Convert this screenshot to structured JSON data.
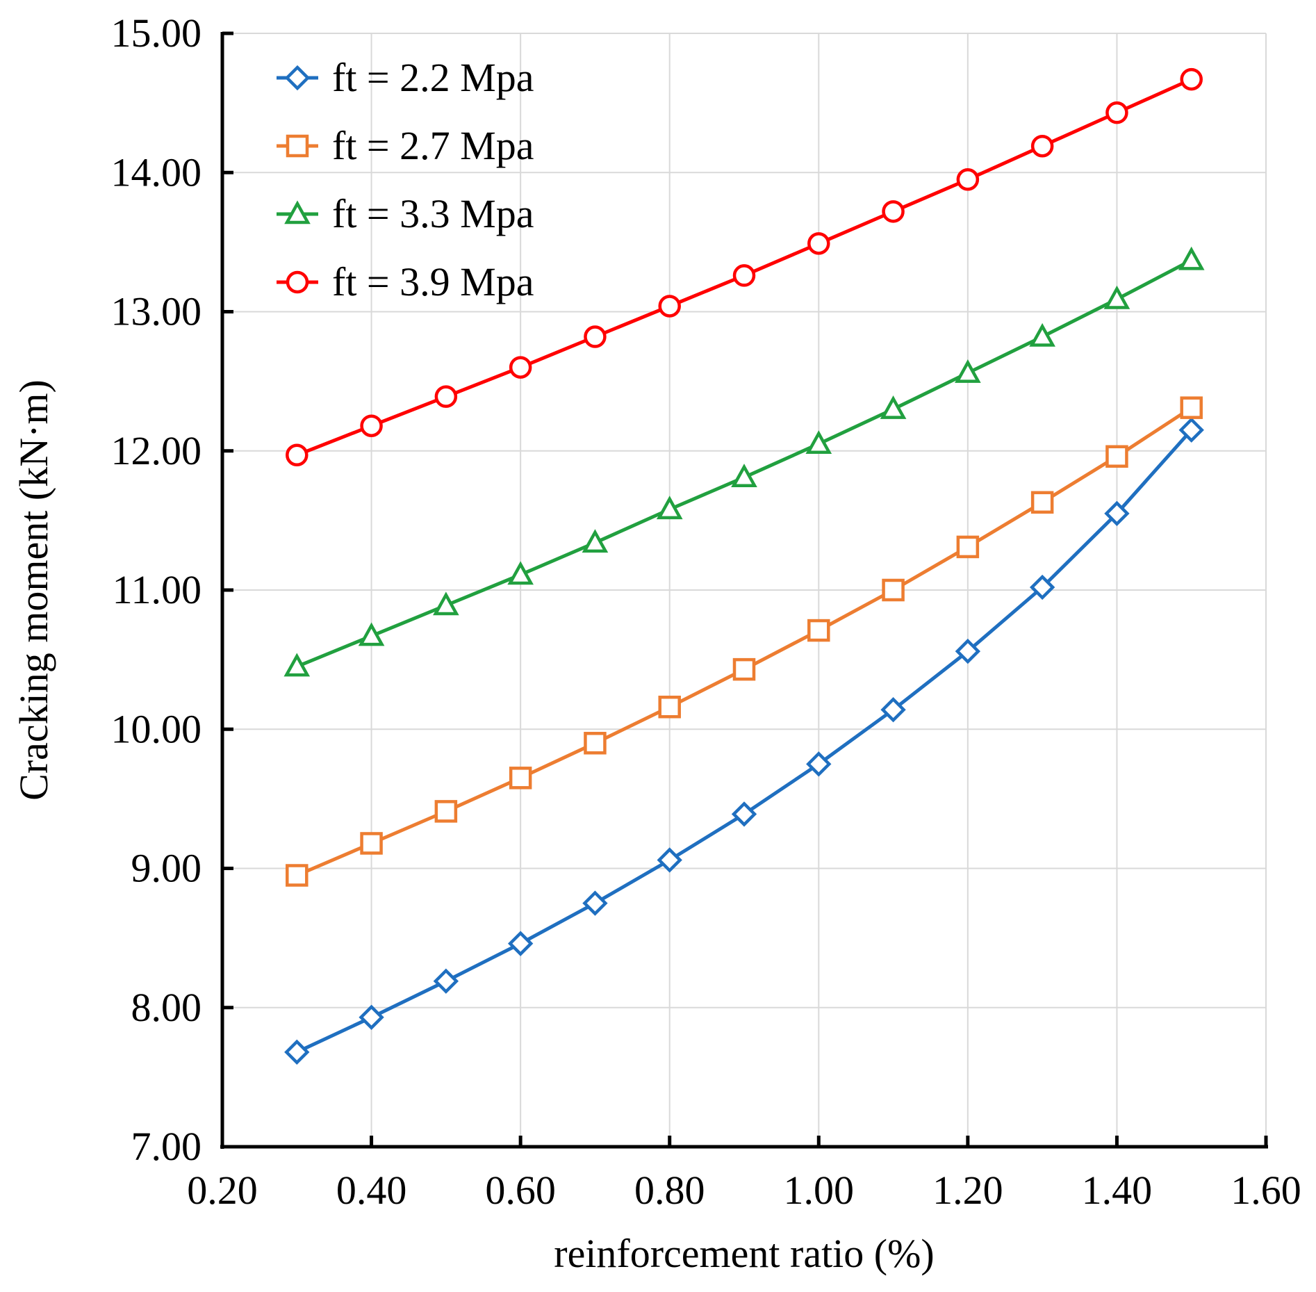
{
  "chart_data": {
    "type": "line",
    "title": "",
    "xlabel": "reinforcement ratio (%)",
    "ylabel": "Cracking moment (kN·m)",
    "xlim": [
      0.2,
      1.6
    ],
    "ylim": [
      7.0,
      15.0
    ],
    "xticks": [
      0.2,
      0.4,
      0.6,
      0.8,
      1.0,
      1.2,
      1.4,
      1.6
    ],
    "yticks": [
      7.0,
      8.0,
      9.0,
      10.0,
      11.0,
      12.0,
      13.0,
      14.0,
      15.0
    ],
    "x_tick_labels": [
      "0.20",
      "0.40",
      "0.60",
      "0.80",
      "1.00",
      "1.20",
      "1.40",
      "1.60"
    ],
    "y_tick_labels": [
      "7.00",
      "8.00",
      "9.00",
      "10.00",
      "11.00",
      "12.00",
      "13.00",
      "14.00",
      "15.00"
    ],
    "grid": true,
    "legend_position": "top-left",
    "x": [
      0.3,
      0.4,
      0.5,
      0.6,
      0.7,
      0.8,
      0.9,
      1.0,
      1.1,
      1.2,
      1.3,
      1.4,
      1.5
    ],
    "series": [
      {
        "name": "ft = 2.2 Mpa",
        "color": "#1f6fc0",
        "marker": "diamond",
        "values": [
          7.68,
          7.93,
          8.19,
          8.46,
          8.75,
          9.06,
          9.39,
          9.75,
          10.14,
          10.56,
          11.02,
          11.55,
          12.15
        ]
      },
      {
        "name": "ft = 2.7 Mpa",
        "color": "#ed7d31",
        "marker": "square",
        "values": [
          8.95,
          9.18,
          9.41,
          9.65,
          9.9,
          10.16,
          10.43,
          10.71,
          11.0,
          11.31,
          11.63,
          11.96,
          12.31
        ]
      },
      {
        "name": "ft = 3.3 Mpa",
        "color": "#21a03f",
        "marker": "triangle",
        "values": [
          10.45,
          10.67,
          10.89,
          11.11,
          11.34,
          11.58,
          11.81,
          12.05,
          12.3,
          12.56,
          12.82,
          13.09,
          13.37
        ]
      },
      {
        "name": "ft = 3.9 Mpa",
        "color": "#ff0000",
        "marker": "circle",
        "values": [
          11.97,
          12.18,
          12.39,
          12.6,
          12.82,
          13.04,
          13.26,
          13.49,
          13.72,
          13.95,
          14.19,
          14.43,
          14.67
        ]
      }
    ]
  }
}
